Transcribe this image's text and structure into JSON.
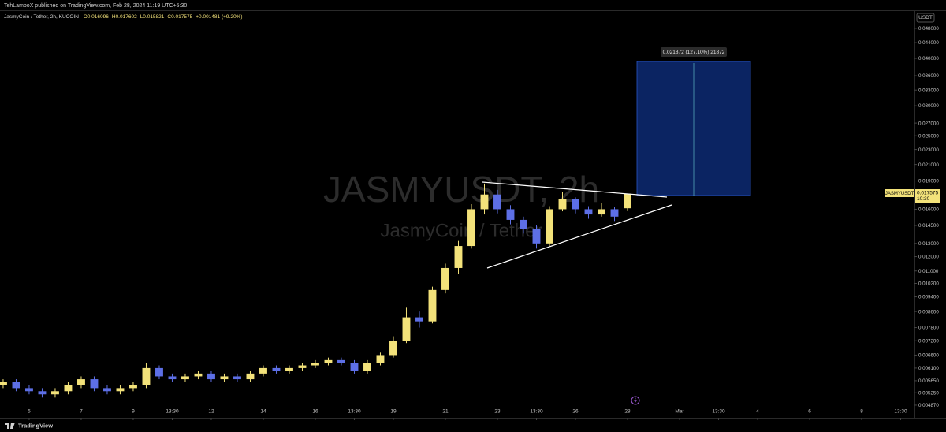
{
  "published": "TehLamboX published on TradingView.com, Feb 28, 2024 11:19 UTC+5:30",
  "footer_logo": "TradingView",
  "chart_data": {
    "type": "candlestick",
    "symbol_info": "JasmyCoin / Tether, 2h, KUCOIN",
    "header_values": [
      "O0.016096",
      "H0.017602",
      "L0.015821",
      "C0.017575",
      "+0.001481 (+9.20%)"
    ],
    "watermark": "JASMYUSDT, 2h",
    "watermark_sub": "JasmyCoin / Tether",
    "currency": "USDT",
    "symbol_tag": "JASMYUSDT",
    "countdown": "10:30",
    "projection_label": "0.021872 (127.10%) 21872",
    "up_color": "#f3e27a",
    "down_color": "#5d6fe6",
    "log_scale": true,
    "x": [
      -1,
      -0.5,
      0,
      0.5,
      1,
      1.5,
      2,
      2.5,
      3,
      3.5,
      4,
      4.5,
      5,
      5.5,
      6,
      6.5,
      7,
      7.5,
      8,
      8.5,
      9,
      9.5,
      10,
      10.5,
      11,
      11.5,
      12,
      12.5,
      13,
      13.5,
      14,
      14.5,
      15,
      15.5,
      16,
      16.5,
      17,
      17.5,
      18,
      18.5,
      19,
      19.5,
      20,
      20.5,
      21,
      21.5,
      22,
      22.5,
      23
    ],
    "ohlc": [
      [
        0.0055,
        0.0057,
        0.0054,
        0.0056
      ],
      [
        0.0056,
        0.0057,
        0.0053,
        0.0054
      ],
      [
        0.0054,
        0.0055,
        0.0052,
        0.0053
      ],
      [
        0.0053,
        0.0054,
        0.0051,
        0.0052
      ],
      [
        0.0052,
        0.0054,
        0.0051,
        0.0053
      ],
      [
        0.0053,
        0.0056,
        0.0052,
        0.0055
      ],
      [
        0.0055,
        0.0058,
        0.0054,
        0.0057
      ],
      [
        0.0057,
        0.0058,
        0.0053,
        0.0054
      ],
      [
        0.0054,
        0.0055,
        0.0052,
        0.0053
      ],
      [
        0.0053,
        0.0055,
        0.0052,
        0.0054
      ],
      [
        0.0054,
        0.0056,
        0.0053,
        0.0055
      ],
      [
        0.0055,
        0.0063,
        0.0054,
        0.0061
      ],
      [
        0.0061,
        0.0062,
        0.0057,
        0.0058
      ],
      [
        0.0058,
        0.0059,
        0.0056,
        0.0057
      ],
      [
        0.0057,
        0.0059,
        0.0056,
        0.0058
      ],
      [
        0.0058,
        0.006,
        0.0057,
        0.0059
      ],
      [
        0.0059,
        0.006,
        0.0056,
        0.0057
      ],
      [
        0.0057,
        0.0059,
        0.0056,
        0.0058
      ],
      [
        0.0058,
        0.0059,
        0.0056,
        0.0057
      ],
      [
        0.0057,
        0.006,
        0.0056,
        0.0059
      ],
      [
        0.0059,
        0.0062,
        0.0058,
        0.0061
      ],
      [
        0.0061,
        0.0062,
        0.0059,
        0.006
      ],
      [
        0.006,
        0.0062,
        0.0059,
        0.0061
      ],
      [
        0.0061,
        0.0063,
        0.006,
        0.0062
      ],
      [
        0.0062,
        0.0064,
        0.0061,
        0.0063
      ],
      [
        0.0063,
        0.0065,
        0.0062,
        0.0064
      ],
      [
        0.0064,
        0.0065,
        0.0062,
        0.0063
      ],
      [
        0.0063,
        0.0064,
        0.0059,
        0.006
      ],
      [
        0.006,
        0.0064,
        0.0059,
        0.0063
      ],
      [
        0.0063,
        0.0067,
        0.0062,
        0.0066
      ],
      [
        0.0066,
        0.0074,
        0.0065,
        0.0072
      ],
      [
        0.0072,
        0.0088,
        0.0071,
        0.0083
      ],
      [
        0.0083,
        0.0086,
        0.0078,
        0.0081
      ],
      [
        0.0081,
        0.01,
        0.008,
        0.0098
      ],
      [
        0.0098,
        0.0115,
        0.0096,
        0.0112
      ],
      [
        0.0112,
        0.0132,
        0.0108,
        0.0128
      ],
      [
        0.0128,
        0.0165,
        0.0126,
        0.016
      ],
      [
        0.016,
        0.0187,
        0.0155,
        0.0175
      ],
      [
        0.0175,
        0.018,
        0.0156,
        0.016
      ],
      [
        0.016,
        0.0164,
        0.0146,
        0.015
      ],
      [
        0.015,
        0.0153,
        0.0138,
        0.0142
      ],
      [
        0.0142,
        0.0145,
        0.0126,
        0.013
      ],
      [
        0.013,
        0.0163,
        0.0128,
        0.016
      ],
      [
        0.016,
        0.0178,
        0.0158,
        0.017
      ],
      [
        0.017,
        0.0172,
        0.0156,
        0.016
      ],
      [
        0.016,
        0.0163,
        0.0151,
        0.0155
      ],
      [
        0.0155,
        0.0166,
        0.0153,
        0.016
      ],
      [
        0.016,
        0.0162,
        0.0149,
        0.0153
      ],
      [
        0.016096,
        0.017602,
        0.015821,
        0.017575
      ]
    ],
    "xlim": [
      -1.12,
      34.03
    ],
    "xticks": [
      {
        "value": 0,
        "label": "5"
      },
      {
        "value": 2,
        "label": "7"
      },
      {
        "value": 4,
        "label": "9"
      },
      {
        "value": 5.5,
        "label": "13:30"
      },
      {
        "value": 7,
        "label": "12"
      },
      {
        "value": 9,
        "label": "14"
      },
      {
        "value": 11,
        "label": "16"
      },
      {
        "value": 12.5,
        "label": "13:30"
      },
      {
        "value": 14,
        "label": "19"
      },
      {
        "value": 16,
        "label": "21"
      },
      {
        "value": 18,
        "label": "23"
      },
      {
        "value": 19.5,
        "label": "13:30"
      },
      {
        "value": 21,
        "label": "26"
      },
      {
        "value": 23,
        "label": "28"
      },
      {
        "value": 25,
        "label": "Mar"
      },
      {
        "value": 26.5,
        "label": "13:30"
      },
      {
        "value": 28,
        "label": "4"
      },
      {
        "value": 30,
        "label": "6"
      },
      {
        "value": 32,
        "label": "8"
      },
      {
        "value": 33.5,
        "label": "13:30"
      }
    ],
    "ylim": [
      0.00451,
      0.0528
    ],
    "yticks": [
      {
        "value": 0.048,
        "label": "0.048000"
      },
      {
        "value": 0.044,
        "label": "0.044000"
      },
      {
        "value": 0.04,
        "label": "0.040000"
      },
      {
        "value": 0.036,
        "label": "0.036000"
      },
      {
        "value": 0.033,
        "label": "0.033000"
      },
      {
        "value": 0.03,
        "label": "0.030000"
      },
      {
        "value": 0.027,
        "label": "0.027000"
      },
      {
        "value": 0.025,
        "label": "0.025000"
      },
      {
        "value": 0.023,
        "label": "0.023000"
      },
      {
        "value": 0.021,
        "label": "0.021000"
      },
      {
        "value": 0.019,
        "label": "0.019000"
      },
      {
        "value": 0.016,
        "label": "0.016000"
      },
      {
        "value": 0.0145,
        "label": "0.014500"
      },
      {
        "value": 0.013,
        "label": "0.013000"
      },
      {
        "value": 0.012,
        "label": "0.012000"
      },
      {
        "value": 0.011,
        "label": "0.011000"
      },
      {
        "value": 0.0102,
        "label": "0.010200"
      },
      {
        "value": 0.0094,
        "label": "0.009400"
      },
      {
        "value": 0.0086,
        "label": "0.008600"
      },
      {
        "value": 0.0078,
        "label": "0.007800"
      },
      {
        "value": 0.0072,
        "label": "0.007200"
      },
      {
        "value": 0.0066,
        "label": "0.006600"
      },
      {
        "value": 0.0061,
        "label": "0.006100"
      },
      {
        "value": 0.00565,
        "label": "0.005650"
      },
      {
        "value": 0.00525,
        "label": "0.005250"
      },
      {
        "value": 0.00487,
        "label": "0.004870"
      }
    ]
  }
}
